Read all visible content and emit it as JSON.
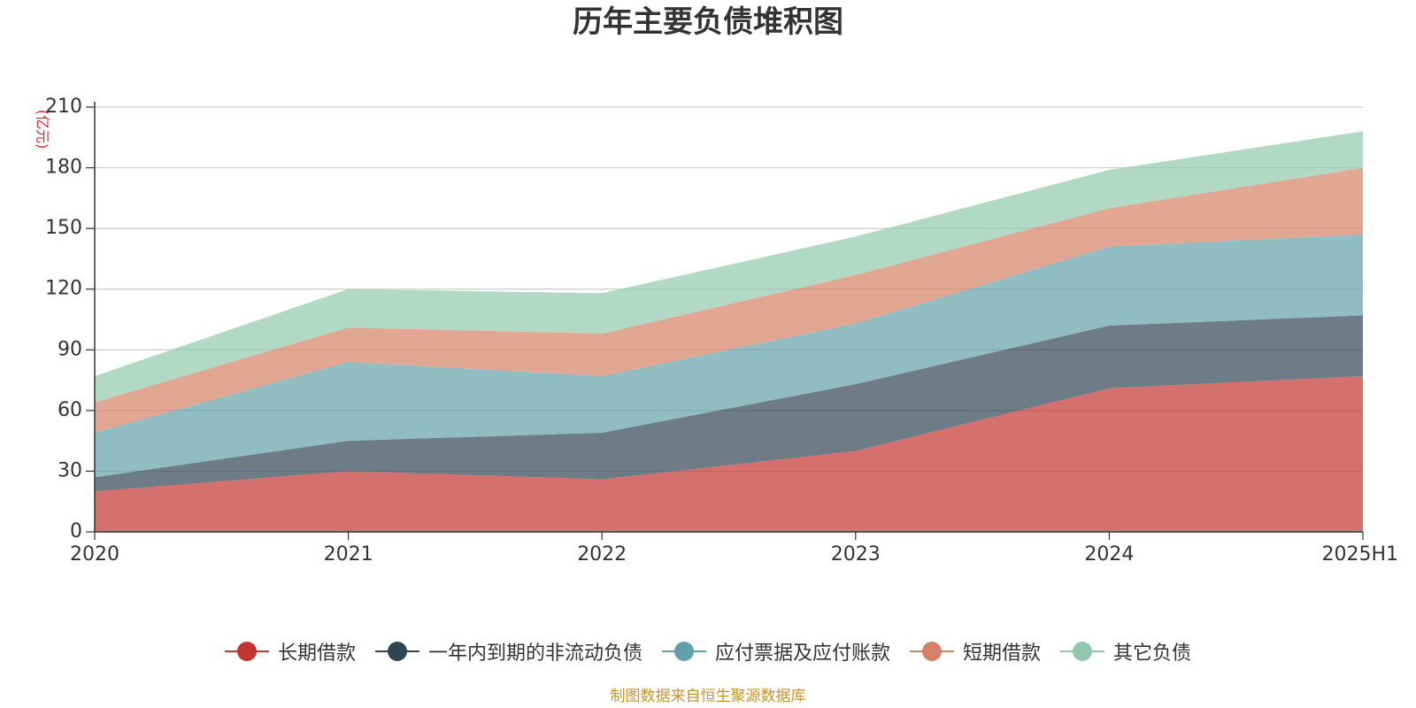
{
  "chart_data": {
    "type": "area",
    "stacked": true,
    "title": "历年主要负债堆积图",
    "ylabel": "(亿元)",
    "xlabel": "",
    "categories": [
      "2020",
      "2021",
      "2022",
      "2023",
      "2024",
      "2025H1"
    ],
    "ylim": [
      0,
      210
    ],
    "yticks": [
      0,
      30,
      60,
      90,
      120,
      150,
      180,
      210
    ],
    "grid": true,
    "legend_position": "bottom",
    "series": [
      {
        "name": "长期借款",
        "color": "#c23531",
        "values": [
          20,
          30,
          26,
          40,
          71,
          77
        ]
      },
      {
        "name": "一年内到期的非流动负债",
        "color": "#2f4554",
        "values": [
          7,
          15,
          23,
          33,
          31,
          30
        ]
      },
      {
        "name": "应付票据及应付账款",
        "color": "#61a0a8",
        "values": [
          22,
          39,
          28,
          30,
          39,
          40
        ]
      },
      {
        "name": "短期借款",
        "color": "#d48265",
        "values": [
          15,
          17,
          21,
          24,
          19,
          33
        ]
      },
      {
        "name": "其它负债",
        "color": "#91c7ae",
        "values": [
          13,
          19,
          20,
          19,
          19,
          18
        ]
      }
    ]
  },
  "source_note": "制图数据来自恒生聚源数据库"
}
